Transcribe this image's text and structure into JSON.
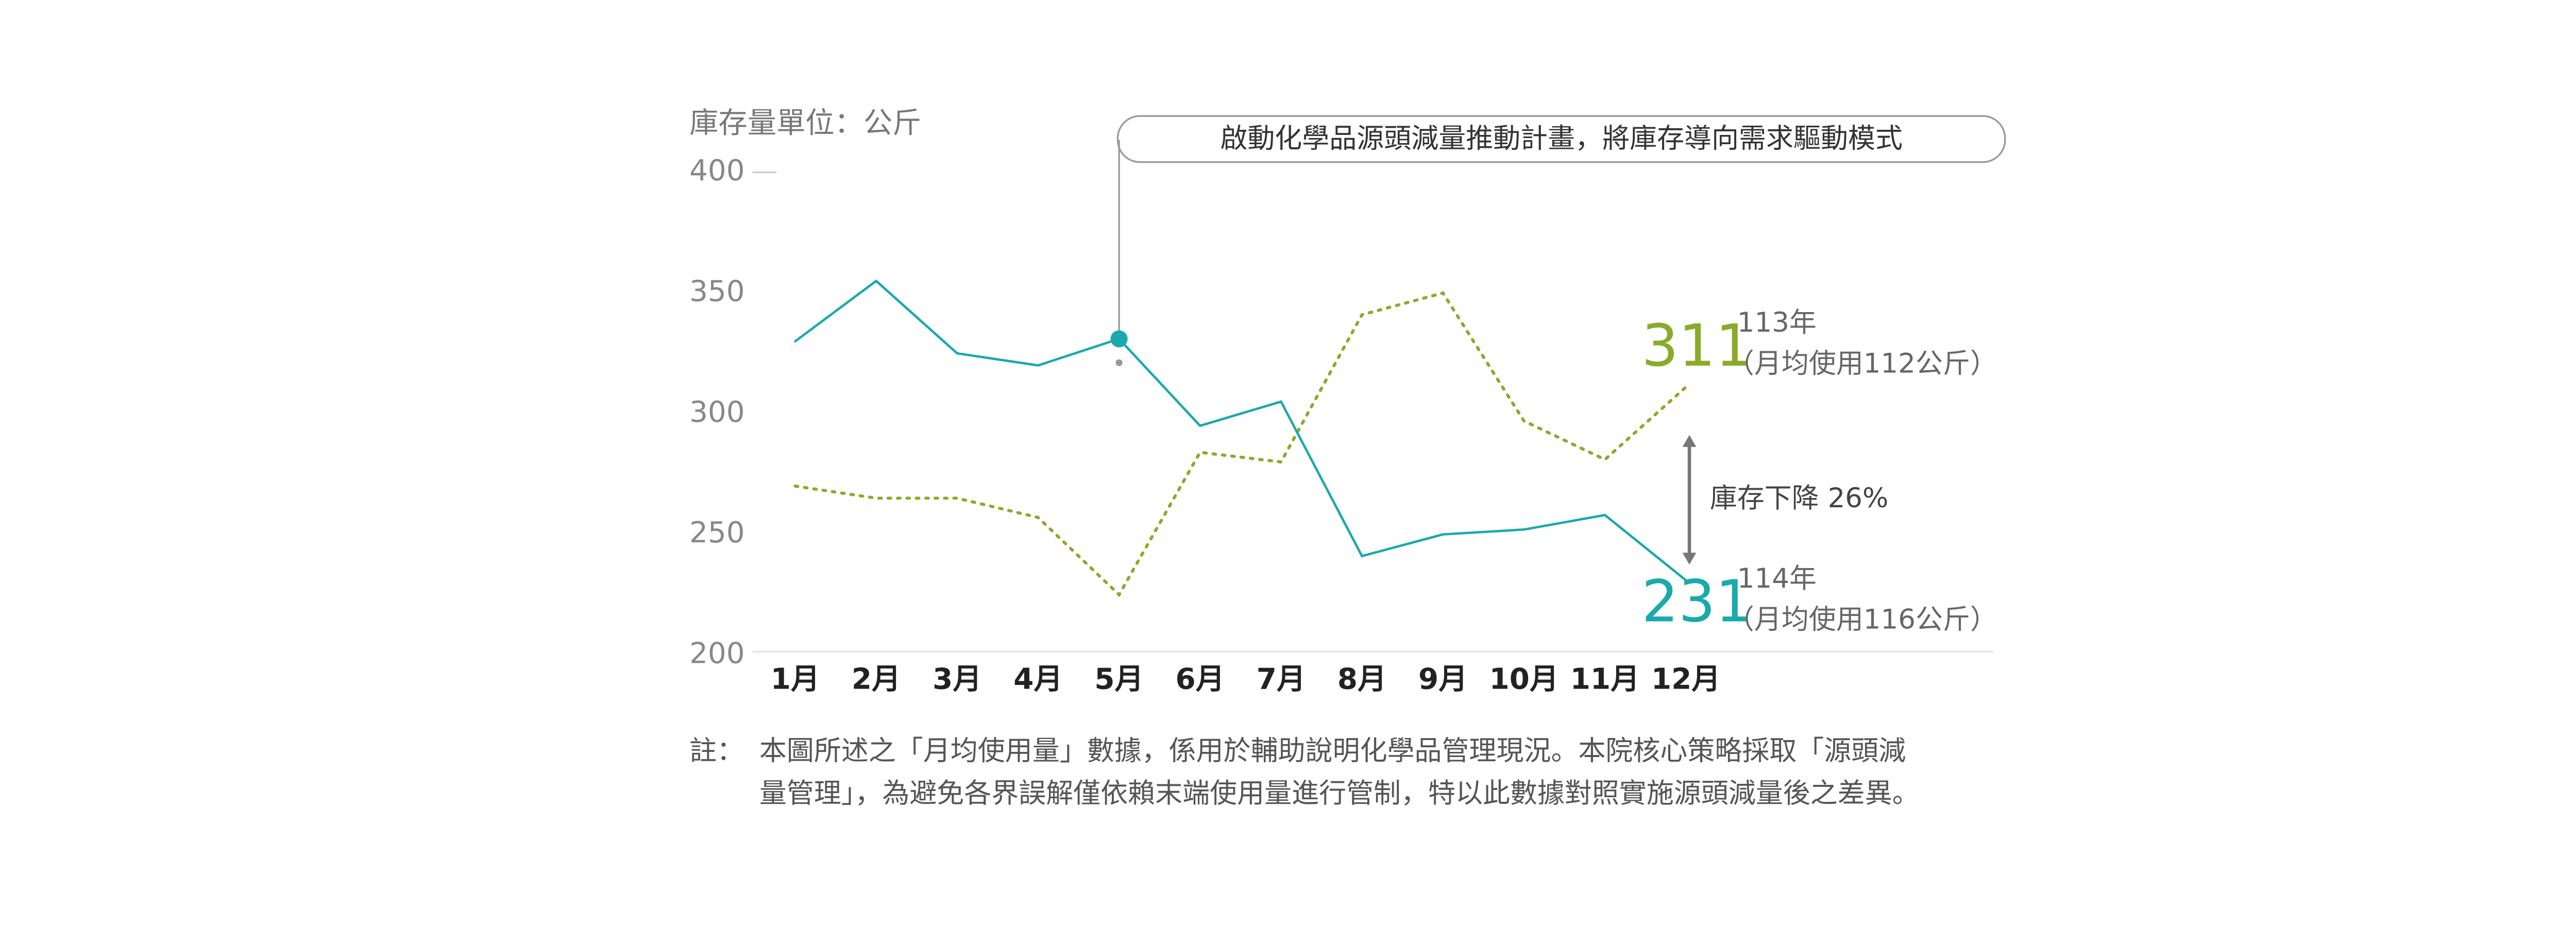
{
  "chart_data": {
    "type": "line",
    "ylabel": "庫存量單位：公斤",
    "categories": [
      "1月",
      "2月",
      "3月",
      "4月",
      "5月",
      "6月",
      "7月",
      "8月",
      "9月",
      "10月",
      "11月",
      "12月"
    ],
    "series": [
      {
        "name": "113年",
        "note": "（月均使用112公斤）",
        "color": "#8aab2a",
        "style": "dotted",
        "values": [
          270,
          265,
          265,
          257,
          225,
          284,
          280,
          341,
          350,
          297,
          281,
          311
        ]
      },
      {
        "name": "114年",
        "note": "（月均使用116公斤）",
        "color": "#1aa9ac",
        "style": "solid",
        "values": [
          330,
          355,
          325,
          320,
          331,
          295,
          305,
          241,
          250,
          252,
          258,
          231
        ]
      }
    ],
    "ylim": [
      200,
      400
    ],
    "yticks": [
      200,
      250,
      300,
      350,
      400
    ],
    "annotation": "啟動化學品源頭減量推動計畫，將庫存導向需求驅動模式",
    "gap_label": "庫存下降 26%",
    "footnote": {
      "label": "註：",
      "lines": [
        "本圖所述之「月均使用量」數據，係用於輔助說明化學品管理現況。本院核心策略採取「源頭減",
        "量管理」，為避免各界誤解僅依賴末端使用量進行管制，特以此數據對照實施源頭減量後之差異。"
      ]
    }
  }
}
